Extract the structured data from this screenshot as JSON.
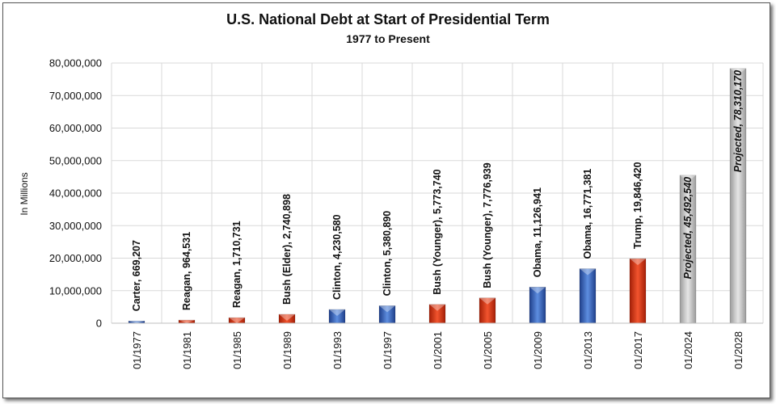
{
  "chart_data": {
    "type": "bar",
    "title": "U.S. National Debt at Start of Presidential Term",
    "subtitle": "1977 to Present",
    "ylabel": "In Millions",
    "ylim": [
      0,
      80000000
    ],
    "yticks": [
      0,
      10000000,
      20000000,
      30000000,
      40000000,
      50000000,
      60000000,
      70000000,
      80000000
    ],
    "ytick_labels": [
      "0",
      "10,000,000",
      "20,000,000",
      "30,000,000",
      "40,000,000",
      "50,000,000",
      "60,000,000",
      "70,000,000",
      "80,000,000"
    ],
    "categories": [
      "01/1977",
      "01/1981",
      "01/1985",
      "01/1989",
      "01/1993",
      "01/1997",
      "01/2001",
      "01/2005",
      "01/2009",
      "01/2013",
      "01/2017",
      "01/2024",
      "01/2028"
    ],
    "values": [
      669207,
      964531,
      1710731,
      2740898,
      4230580,
      5380890,
      5773740,
      7776939,
      11126941,
      16771381,
      19846420,
      45492540,
      78310170
    ],
    "data_labels": [
      "Carter, 669,207",
      "Reagan, 964,531",
      "Reagan, 1,710,731",
      "Bush (Elder), 2,740,898",
      "Clinton, 4,230,580",
      "Clinton, 5,380,890",
      "Bush (Younger), 5,773,740",
      "Bush (Younger), 7,776,939",
      "Obama, 11,126,941",
      "Obama, 16,771,381",
      "Trump, 19,846,420",
      "Projected, 45,492,540",
      "Projected, 78,310,170"
    ],
    "bar_colors": [
      "#3d6fc6",
      "#e0391a",
      "#e0391a",
      "#e0391a",
      "#3d6fc6",
      "#3d6fc6",
      "#e0391a",
      "#e0391a",
      "#3d6fc6",
      "#3d6fc6",
      "#e0391a",
      "#c8c8c8",
      "#c8c8c8"
    ],
    "grid": true,
    "legend": "none"
  }
}
